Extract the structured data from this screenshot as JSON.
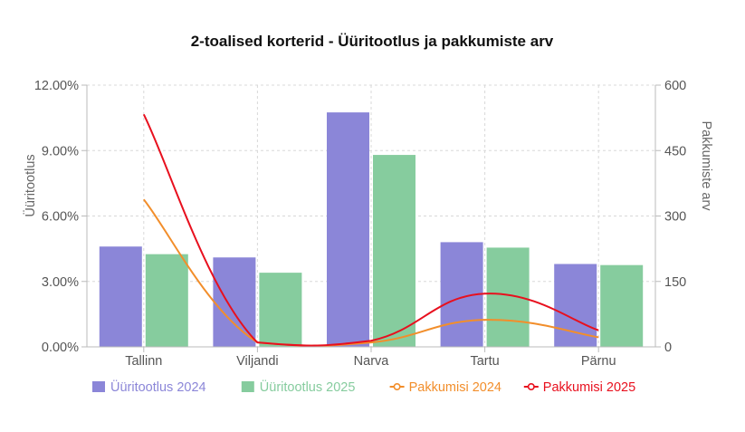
{
  "chart_data": {
    "type": "bar",
    "title": "2-toalised korterid - Üüritootlus ja pakkumiste arv",
    "categories": [
      "Tallinn",
      "Viljandi",
      "Narva",
      "Tartu",
      "Pärnu"
    ],
    "y_left": {
      "label": "Üüritootlus",
      "ticks": [
        "0.00%",
        "3.00%",
        "6.00%",
        "9.00%",
        "12.00%"
      ],
      "range": [
        0,
        12
      ]
    },
    "y_right": {
      "label": "Pakkumiste arv",
      "ticks": [
        "0",
        "150",
        "300",
        "450",
        "600"
      ],
      "range": [
        0,
        600
      ]
    },
    "series": [
      {
        "name": "Üüritootlus 2024",
        "kind": "bar",
        "axis": "left",
        "color": "#8b86d8",
        "values": [
          4.6,
          4.1,
          10.75,
          4.8,
          3.8
        ]
      },
      {
        "name": "Üüritootlus 2025",
        "kind": "bar",
        "axis": "left",
        "color": "#86cc9e",
        "values": [
          4.25,
          3.4,
          8.8,
          4.55,
          3.75
        ]
      },
      {
        "name": "Pakkumisi 2024",
        "kind": "line",
        "axis": "right",
        "color": "#f28e2b",
        "values": [
          338,
          10,
          10,
          62,
          22
        ]
      },
      {
        "name": "Pakkumisi 2025",
        "kind": "line",
        "axis": "right",
        "color": "#e8101e",
        "values": [
          533,
          10,
          14,
          122,
          38
        ]
      }
    ],
    "grid": true,
    "legend_position": "bottom"
  }
}
